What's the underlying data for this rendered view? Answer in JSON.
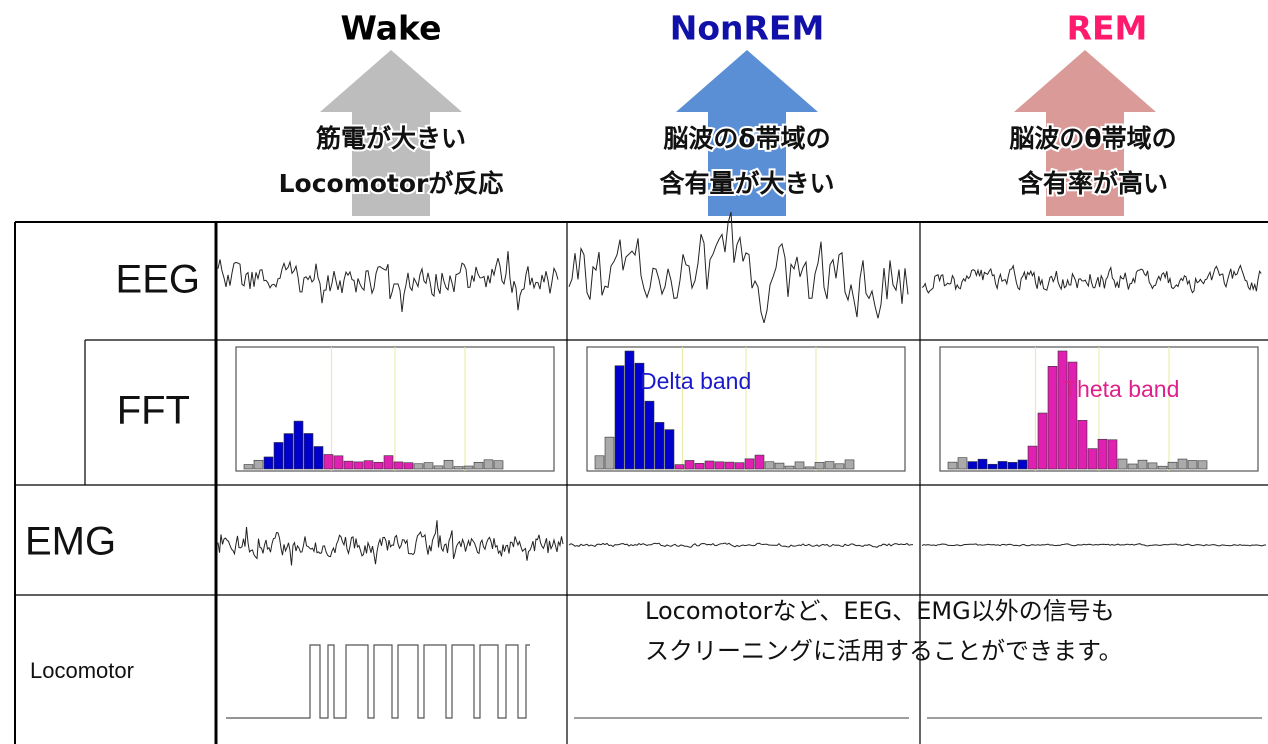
{
  "columns": [
    {
      "title": "Wake",
      "description": [
        "筋電が大きい",
        "Locomotorが反応"
      ]
    },
    {
      "title": "NonREM",
      "description": [
        "脳波のδ帯域の",
        "含有量が大きい"
      ],
      "band_label": "Delta band"
    },
    {
      "title": "REM",
      "description": [
        "脳波のθ帯域の",
        "含有率が高い"
      ],
      "band_label": "Theta band"
    }
  ],
  "rows": [
    "EEG",
    "FFT",
    "EMG",
    "Locomotor"
  ],
  "note": [
    "Locomotorなど、EEG、EMG以外の信号も",
    "スクリーニングに活用することができます。"
  ]
}
